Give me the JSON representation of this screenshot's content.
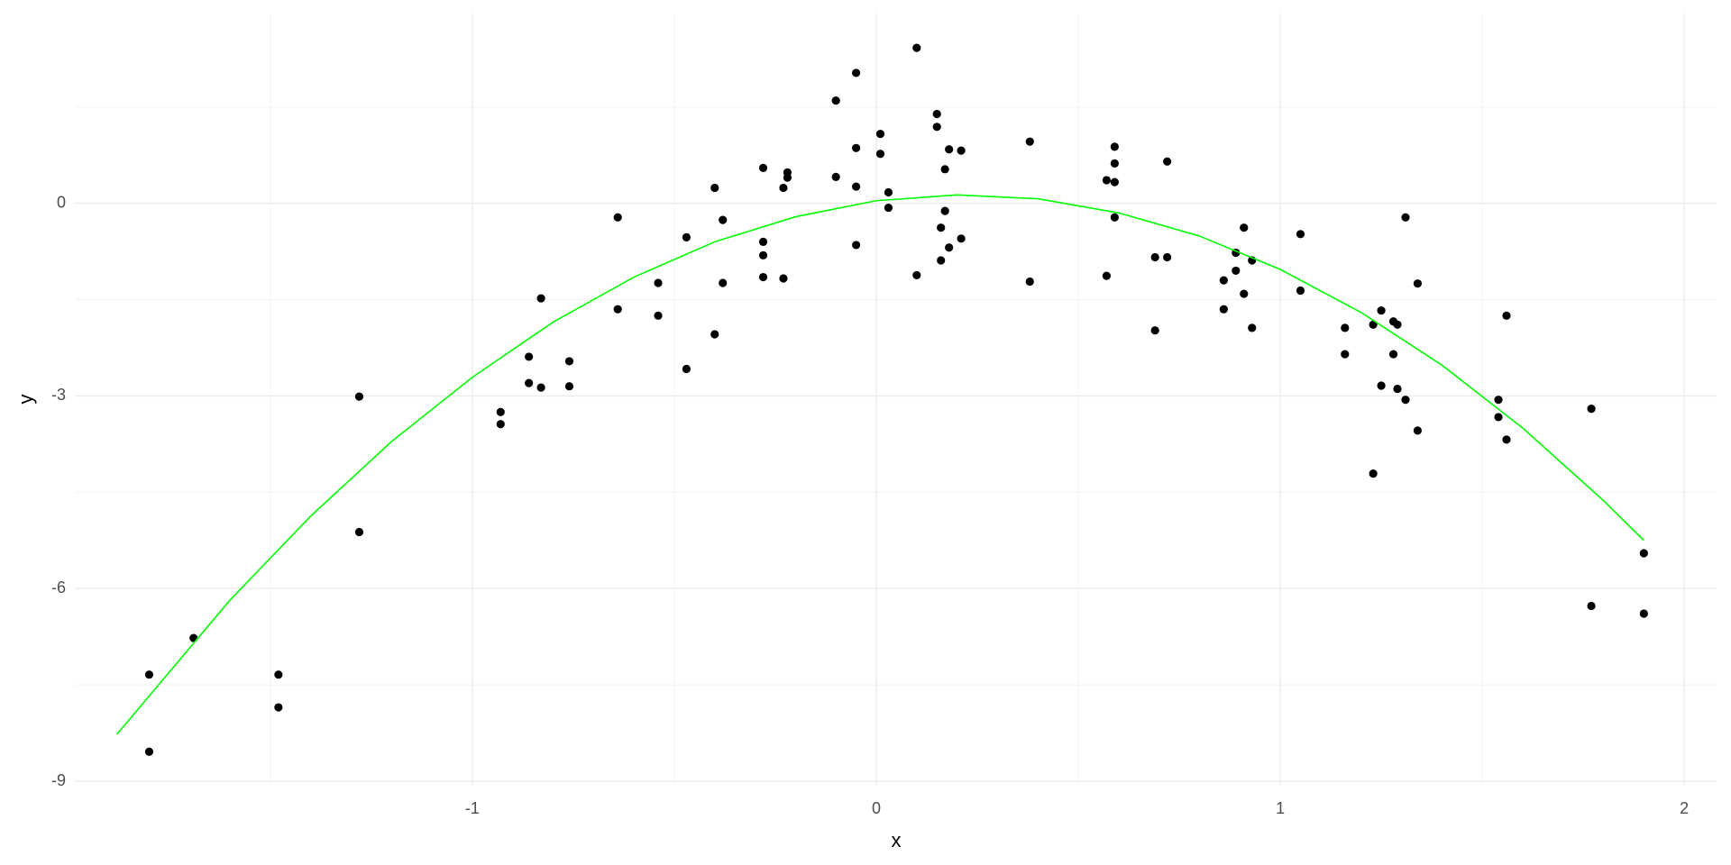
{
  "chart_data": {
    "type": "scatter",
    "x_label": "x",
    "y_label": "y",
    "x": [
      -1.8,
      -1.8,
      -1.69,
      -1.48,
      -1.48,
      -1.28,
      -1.28,
      -0.93,
      -0.93,
      -0.86,
      -0.86,
      -0.83,
      -0.83,
      -0.76,
      -0.76,
      -0.64,
      -0.64,
      -0.54,
      -0.54,
      -0.47,
      -0.47,
      -0.4,
      -0.4,
      -0.38,
      -0.38,
      -0.28,
      -0.28,
      -0.28,
      -0.28,
      -0.23,
      -0.23,
      -0.22,
      -0.22,
      -0.1,
      -0.1,
      -0.05,
      -0.05,
      -0.05,
      -0.05,
      0.01,
      0.01,
      0.03,
      0.03,
      0.1,
      0.1,
      0.15,
      0.15,
      0.17,
      0.17,
      0.16,
      0.16,
      0.18,
      0.18,
      0.21,
      0.21,
      0.38,
      0.38,
      0.57,
      0.57,
      0.59,
      0.59,
      0.59,
      0.59,
      0.69,
      0.69,
      0.72,
      0.72,
      0.86,
      0.86,
      0.89,
      0.89,
      0.91,
      0.91,
      0.93,
      0.93,
      1.05,
      1.05,
      1.16,
      1.16,
      1.23,
      1.23,
      1.25,
      1.25,
      1.28,
      1.29,
      1.28,
      1.29,
      1.31,
      1.31,
      1.34,
      1.34,
      1.54,
      1.54,
      1.56,
      1.56,
      1.77,
      1.77,
      1.9,
      1.9
    ],
    "values": [
      -7.34,
      -8.54,
      -6.77,
      -7.34,
      -7.85,
      -3.01,
      -5.12,
      -3.25,
      -3.44,
      -2.39,
      -2.8,
      -1.48,
      -2.87,
      -2.46,
      -2.85,
      -0.22,
      -1.65,
      -1.24,
      -1.75,
      -0.53,
      -2.58,
      0.24,
      -2.04,
      -0.26,
      -1.24,
      0.55,
      -0.6,
      -0.81,
      -1.15,
      0.24,
      -1.17,
      0.48,
      0.4,
      1.6,
      0.41,
      2.03,
      0.86,
      0.26,
      -0.65,
      1.08,
      0.77,
      0.17,
      -0.07,
      2.42,
      -1.12,
      1.39,
      1.19,
      0.53,
      -0.12,
      -0.38,
      -0.89,
      0.84,
      -0.69,
      0.82,
      -0.55,
      0.96,
      -1.22,
      0.36,
      -1.13,
      0.88,
      0.62,
      0.33,
      -0.22,
      -0.84,
      -1.98,
      0.65,
      -0.84,
      -1.2,
      -1.65,
      -0.77,
      -1.05,
      -0.38,
      -1.41,
      -0.89,
      -1.94,
      -0.48,
      -1.36,
      -1.94,
      -2.35,
      -1.89,
      -4.21,
      -1.67,
      -2.84,
      -1.84,
      -1.89,
      -2.35,
      -2.89,
      -0.22,
      -3.06,
      -1.25,
      -3.54,
      -3.06,
      -3.33,
      -1.75,
      -3.68,
      -3.2,
      -6.27,
      -5.45,
      -6.39
    ],
    "color": "#000000",
    "fit": {
      "x": [
        -1.88,
        -1.6,
        -1.4,
        -1.2,
        -1.0,
        -0.8,
        -0.6,
        -0.4,
        -0.2,
        0,
        0.2,
        0.4,
        0.6,
        0.8,
        1.0,
        1.2,
        1.4,
        1.6,
        1.8,
        1.9
      ],
      "values": [
        -8.27,
        -6.18,
        -4.87,
        -3.71,
        -2.71,
        -1.85,
        -1.15,
        -0.6,
        -0.21,
        0.04,
        0.13,
        0.07,
        -0.15,
        -0.51,
        -1.03,
        -1.7,
        -2.52,
        -3.5,
        -4.63,
        -5.25
      ],
      "color": "#00ff00"
    },
    "xlim": [
      -1.984,
      2.08
    ],
    "ylim": [
      -9.07,
      2.955
    ],
    "xticks": [
      -1,
      0,
      1,
      2
    ],
    "yticks": [
      -9,
      -6,
      -3,
      0
    ],
    "x_minor_grid": [
      -1.5,
      -0.5,
      0.5,
      1.5
    ],
    "y_minor_grid": [
      -7.5,
      -4.5,
      -1.5,
      1.5
    ],
    "grid": true
  }
}
